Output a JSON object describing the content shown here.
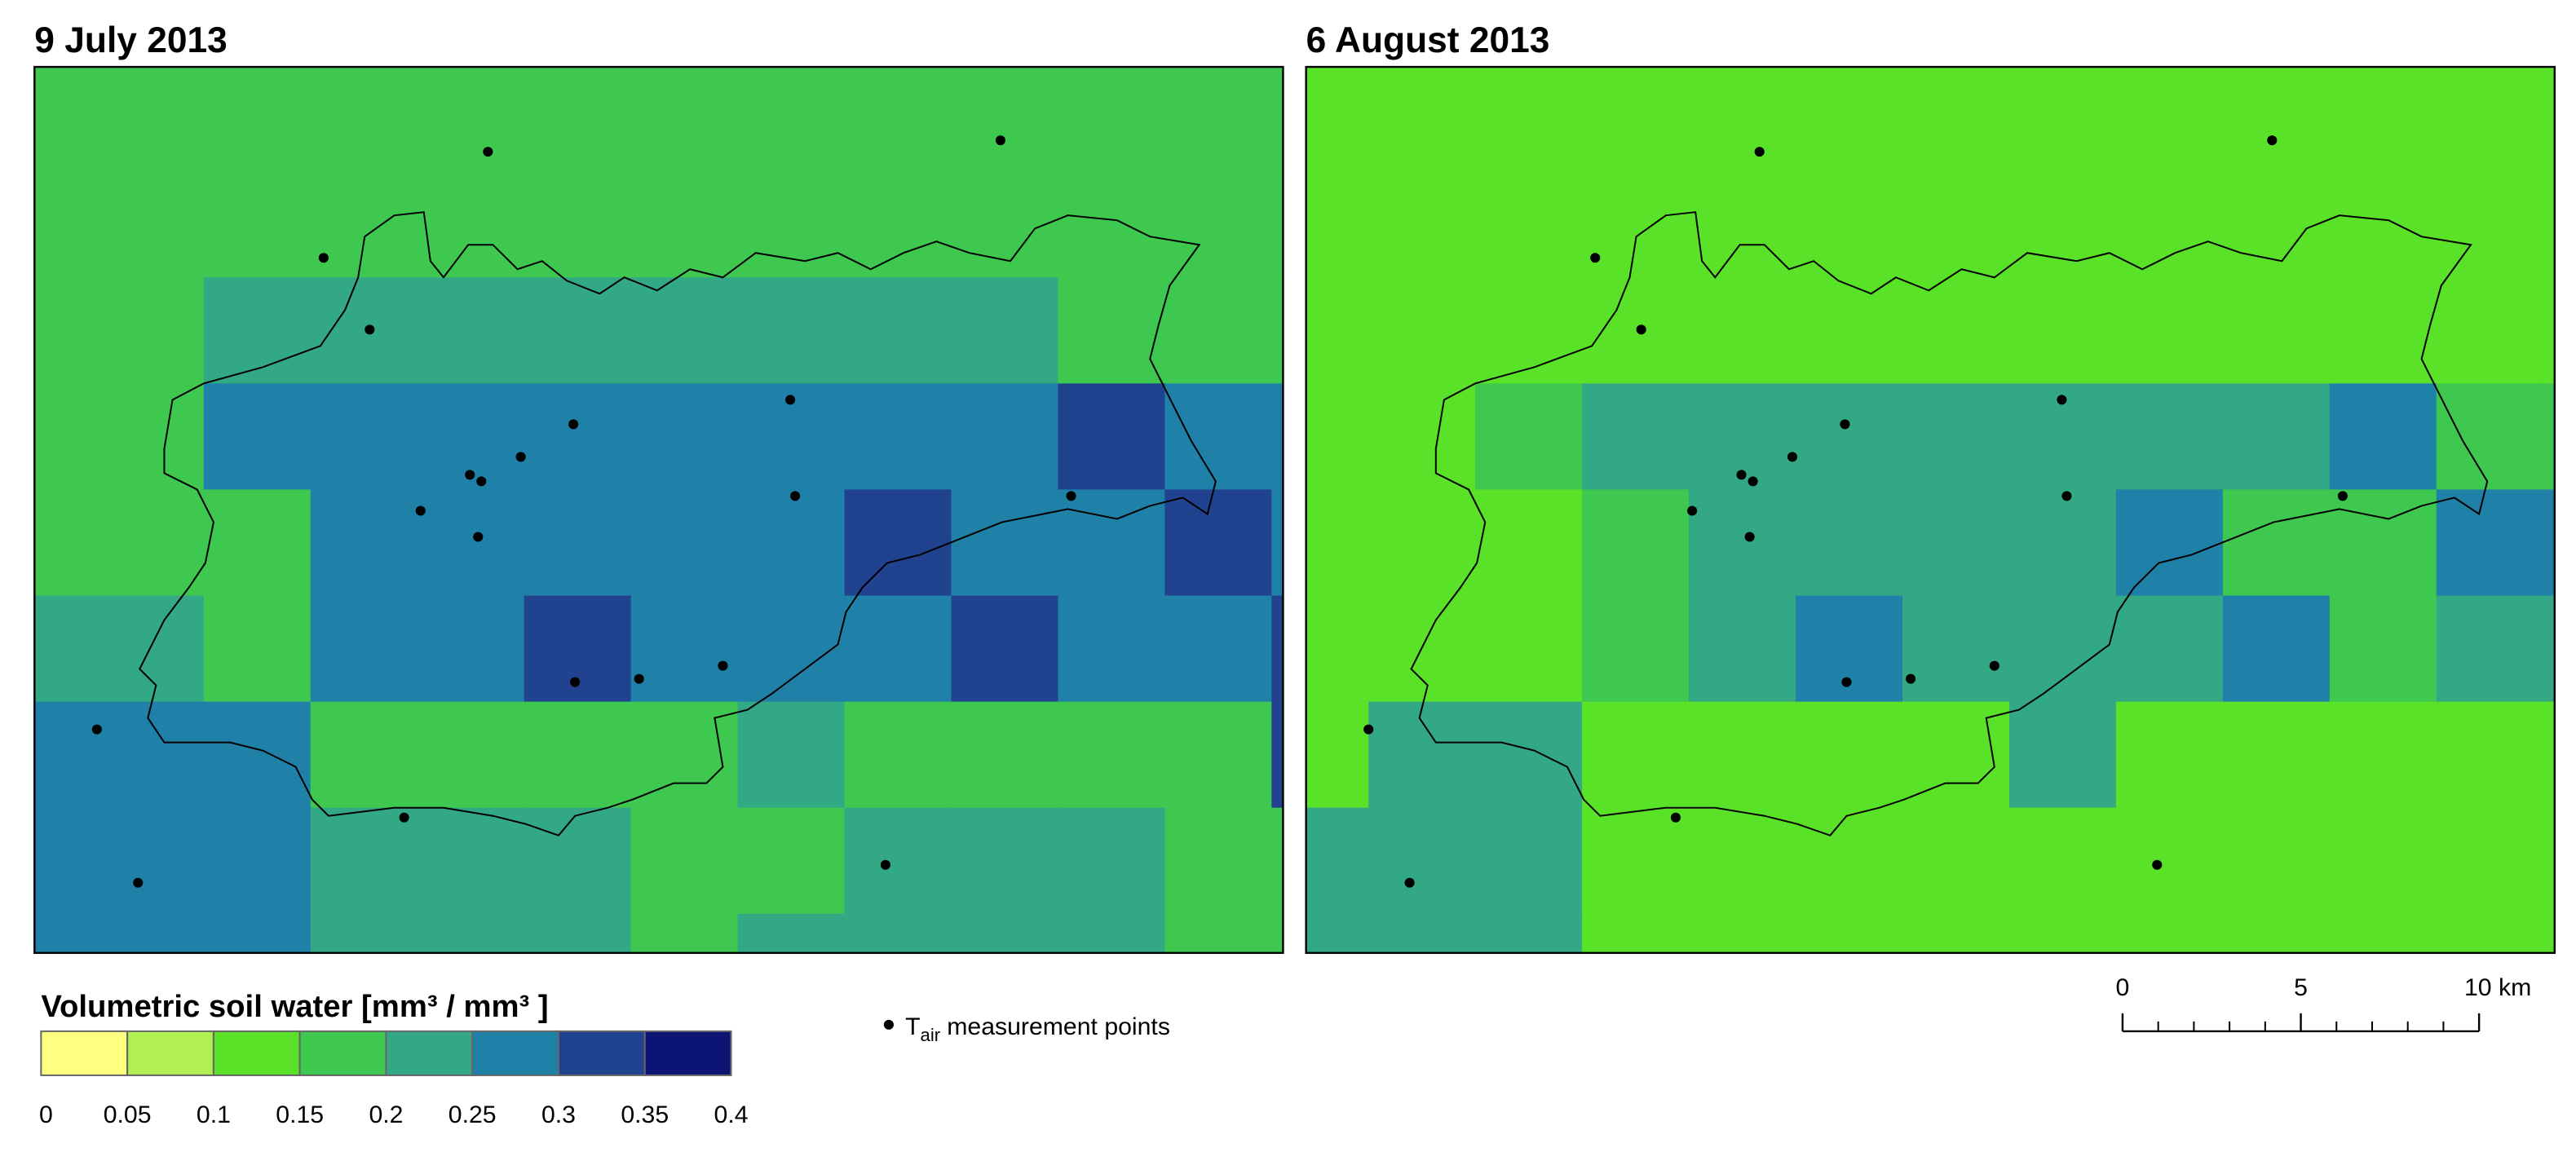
{
  "maps": [
    {
      "title": "9 July 2013",
      "grid": [
        [
          0.15,
          0.15,
          0.15,
          0.15,
          0.15,
          0.15,
          0.15,
          0.15,
          0.15,
          0.15,
          0.15,
          0.15,
          0.15
        ],
        [
          0.15,
          0.15,
          0.15,
          0.15,
          0.15,
          0.15,
          0.15,
          0.15,
          0.15,
          0.15,
          0.15,
          0.15,
          0.15
        ],
        [
          0.15,
          0.15,
          0.2,
          0.2,
          0.2,
          0.2,
          0.2,
          0.2,
          0.2,
          0.2,
          0.15,
          0.15,
          0.15
        ],
        [
          0.15,
          0.15,
          0.25,
          0.25,
          0.25,
          0.25,
          0.25,
          0.25,
          0.25,
          0.25,
          0.3,
          0.25,
          0.25
        ],
        [
          0.15,
          0.15,
          0.15,
          0.25,
          0.25,
          0.25,
          0.25,
          0.25,
          0.3,
          0.25,
          0.25,
          0.3,
          0.25
        ],
        [
          0.2,
          0.2,
          0.15,
          0.25,
          0.25,
          0.3,
          0.25,
          0.25,
          0.25,
          0.3,
          0.25,
          0.25,
          0.3
        ],
        [
          0.25,
          0.25,
          0.25,
          0.15,
          0.15,
          0.15,
          0.15,
          0.2,
          0.15,
          0.15,
          0.15,
          0.15,
          0.3
        ],
        [
          0.25,
          0.25,
          0.25,
          0.2,
          0.2,
          0.2,
          0.15,
          0.15,
          0.2,
          0.2,
          0.2,
          0.15,
          0.15
        ],
        [
          0.25,
          0.25,
          0.25,
          0.2,
          0.2,
          0.2,
          0.15,
          0.2,
          0.2,
          0.2,
          0.2,
          0.15,
          0.15
        ]
      ]
    },
    {
      "title": "6 August 2013",
      "grid": [
        [
          0.1,
          0.1,
          0.1,
          0.1,
          0.1,
          0.1,
          0.1,
          0.1,
          0.1,
          0.1,
          0.1,
          0.1,
          0.1
        ],
        [
          0.1,
          0.1,
          0.1,
          0.1,
          0.1,
          0.1,
          0.1,
          0.1,
          0.1,
          0.1,
          0.1,
          0.1,
          0.1
        ],
        [
          0.1,
          0.1,
          0.1,
          0.1,
          0.1,
          0.1,
          0.1,
          0.1,
          0.1,
          0.1,
          0.1,
          0.1,
          0.1
        ],
        [
          0.1,
          0.1,
          0.15,
          0.2,
          0.2,
          0.2,
          0.2,
          0.2,
          0.2,
          0.2,
          0.25,
          0.15,
          0.15
        ],
        [
          0.1,
          0.1,
          0.1,
          0.15,
          0.2,
          0.2,
          0.2,
          0.2,
          0.25,
          0.15,
          0.15,
          0.25,
          0.25
        ],
        [
          0.1,
          0.1,
          0.1,
          0.15,
          0.2,
          0.25,
          0.2,
          0.2,
          0.2,
          0.25,
          0.15,
          0.2,
          0.2
        ],
        [
          0.1,
          0.2,
          0.2,
          0.1,
          0.1,
          0.1,
          0.1,
          0.2,
          0.1,
          0.1,
          0.1,
          0.1,
          0.1
        ],
        [
          0.2,
          0.2,
          0.2,
          0.1,
          0.1,
          0.1,
          0.1,
          0.1,
          0.1,
          0.1,
          0.1,
          0.1,
          0.1
        ],
        [
          0.2,
          0.2,
          0.2,
          0.1,
          0.1,
          0.1,
          0.1,
          0.1,
          0.1,
          0.1,
          0.1,
          0.1,
          0.1
        ]
      ]
    }
  ],
  "legend": {
    "title": "Volumetric soil water [mm³ / mm³ ]",
    "ticks": [
      0,
      0.05,
      0.1,
      0.15,
      0.2,
      0.25,
      0.3,
      0.35,
      0.4
    ],
    "colors": [
      "#ffff80",
      "#b0f050",
      "#5ae228",
      "#3fc84f",
      "#33a884",
      "#1f80a8",
      "#21438f",
      "#0c1474"
    ]
  },
  "points_legend": {
    "symbol": "T",
    "subscript": "air",
    "text": "measurement points"
  },
  "scale_bar": {
    "ticks": [
      0,
      5,
      {
        "value": 10,
        "label": "10 km"
      }
    ]
  }
}
